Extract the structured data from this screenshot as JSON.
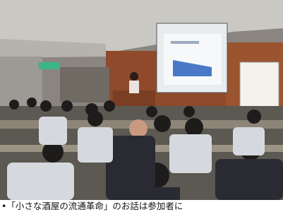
{
  "caption": "•「小さな酒屋の流通革命」のお話は参加者に"
}
